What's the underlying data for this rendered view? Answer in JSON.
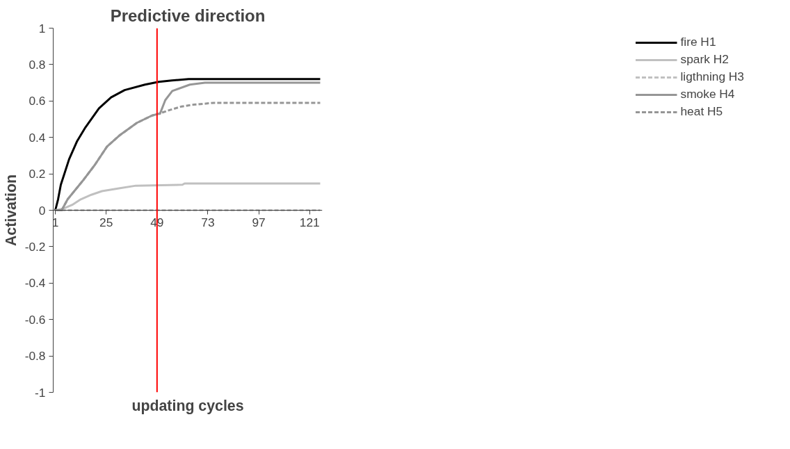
{
  "chart_data": {
    "type": "line",
    "title": "Predictive direction",
    "xlabel": "updating cycles",
    "ylabel": "Activation",
    "xlim": [
      0,
      127
    ],
    "xticks": [
      1,
      25,
      49,
      73,
      97,
      121
    ],
    "ylim": [
      -1,
      1
    ],
    "yticks": [
      -1,
      -0.8,
      -0.6,
      -0.4,
      -0.2,
      0,
      0.2,
      0.4,
      0.6,
      0.8,
      1
    ],
    "grid": false,
    "legend": "right",
    "marker": "none",
    "ref_lines": [
      {
        "axis": "x",
        "value": 49,
        "label": null,
        "color": "#ff0000"
      }
    ],
    "series": [
      {
        "name": "fire H1",
        "color": "#000000",
        "line_style": "solid",
        "x": [
          1,
          2.3,
          3.6,
          7.5,
          11.3,
          15.2,
          21.6,
          27.3,
          33.7,
          43.3,
          49.8,
          56,
          63.9,
          126
        ],
        "values": [
          0,
          0.06,
          0.14,
          0.28,
          0.38,
          0.455,
          0.56,
          0.62,
          0.66,
          0.69,
          0.705,
          0.713,
          0.72,
          0.72
        ]
      },
      {
        "name": "spark H2",
        "color": "#c0c0c0",
        "line_style": "solid",
        "x": [
          1,
          5,
          9,
          13,
          18,
          23,
          31,
          39,
          61,
          62,
          126
        ],
        "values": [
          0,
          0.01,
          0.03,
          0.06,
          0.085,
          0.105,
          0.12,
          0.135,
          0.14,
          0.147,
          0.147
        ]
      },
      {
        "name": "ligthning H3",
        "color": "#c0c0c0",
        "line_style": "dashed",
        "x": [
          1,
          126
        ],
        "values": [
          0,
          0
        ]
      },
      {
        "name": "smoke H4",
        "color": "#969696",
        "line_style": "solid",
        "x": [
          1,
          4,
          6.8,
          14.5,
          19.7,
          25.4,
          31.2,
          39.5,
          46.6,
          49.8,
          50.4,
          52.9,
          56.2,
          64.5,
          71.6,
          126
        ],
        "values": [
          0,
          0,
          0.06,
          0.17,
          0.25,
          0.35,
          0.41,
          0.48,
          0.52,
          0.53,
          0.53,
          0.605,
          0.655,
          0.69,
          0.7,
          0.7
        ]
      },
      {
        "name": "heat H5",
        "color": "#969696",
        "line_style": "dashed",
        "x": [
          1,
          4,
          6.8,
          14.5,
          19.7,
          25.4,
          31.2,
          39.5,
          46.6,
          49.8,
          54.9,
          60.6,
          66.4,
          76,
          126
        ],
        "values": [
          0,
          0,
          0.06,
          0.17,
          0.25,
          0.35,
          0.41,
          0.48,
          0.52,
          0.53,
          0.55,
          0.57,
          0.58,
          0.59,
          0.59
        ]
      }
    ]
  }
}
